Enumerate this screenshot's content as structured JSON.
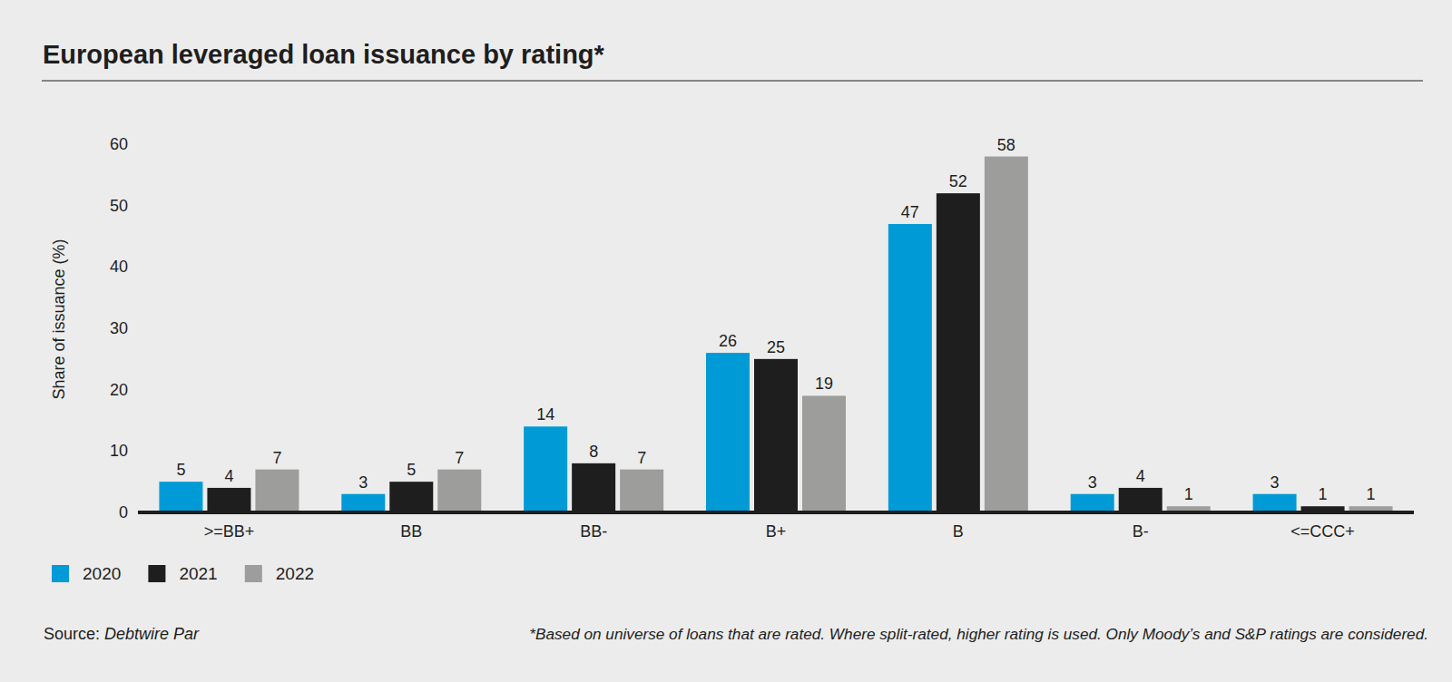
{
  "chart_data": {
    "type": "bar",
    "title": "European leveraged loan issuance by rating*",
    "y_label": "Share of issuance (%)",
    "categories": [
      ">=BB+",
      "BB",
      "BB-",
      "B+",
      "B",
      "B-",
      "<=CCC+"
    ],
    "series": [
      {
        "name": "2020",
        "color": "#009bd6",
        "values": [
          5,
          3,
          14,
          26,
          47,
          3,
          3
        ]
      },
      {
        "name": "2021",
        "color": "#1e1e1e",
        "values": [
          4,
          5,
          8,
          25,
          52,
          4,
          1
        ]
      },
      {
        "name": "2022",
        "color": "#9d9d9c",
        "values": [
          7,
          7,
          7,
          19,
          58,
          1,
          1
        ]
      }
    ],
    "ylim": [
      0,
      60
    ],
    "yticks": [
      0,
      10,
      20,
      30,
      40,
      50,
      60
    ],
    "grid": false,
    "legend": "bottom-left",
    "data_labels": true,
    "source_label": "Source:",
    "source": "Debtwire Par",
    "footnote": "*Based on universe of loans that are rated. Where split-rated, higher rating is used. Only Moody’s and S&P ratings are considered."
  }
}
